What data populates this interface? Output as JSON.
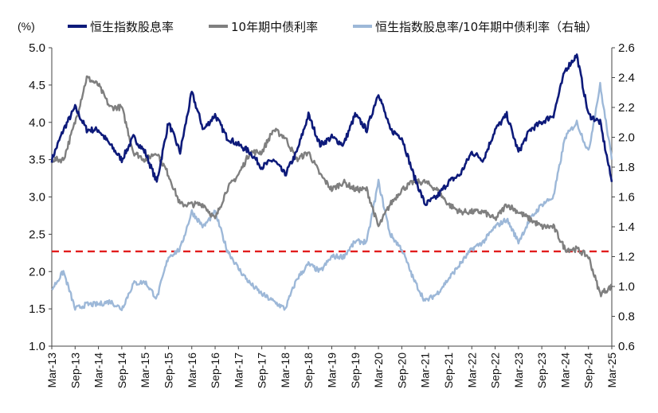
{
  "chart_data": {
    "type": "line",
    "unit_label": "(%)",
    "x_ticks": [
      "Mar-13",
      "Sep-13",
      "Mar-14",
      "Sep-14",
      "Mar-15",
      "Sep-15",
      "Mar-16",
      "Sep-16",
      "Mar-17",
      "Sep-17",
      "Mar-18",
      "Sep-18",
      "Mar-19",
      "Sep-19",
      "Mar-20",
      "Sep-20",
      "Mar-21",
      "Sep-21",
      "Mar-22",
      "Sep-22",
      "Mar-23",
      "Sep-23",
      "Mar-24",
      "Sep-24",
      "Mar-25"
    ],
    "y_left": {
      "min": 1.0,
      "max": 5.0,
      "ticks": [
        "1.0",
        "1.5",
        "2.0",
        "2.5",
        "3.0",
        "3.5",
        "4.0",
        "4.5",
        "5.0"
      ]
    },
    "y_right": {
      "min": 0.6,
      "max": 2.6,
      "ticks": [
        "0.6",
        "0.8",
        "1.0",
        "1.2",
        "1.4",
        "1.6",
        "1.8",
        "2.0",
        "2.2",
        "2.4",
        "2.6"
      ]
    },
    "reference_line": {
      "axis": "left",
      "value": 2.27,
      "color": "#e11d1d",
      "style": "dashed"
    },
    "series": [
      {
        "name": "恒生指数股息率",
        "axis": "left",
        "color": "#0d1a7a",
        "x": [
          "2013-03",
          "2013-06",
          "2013-09",
          "2013-12",
          "2014-03",
          "2014-06",
          "2014-09",
          "2014-12",
          "2015-03",
          "2015-06",
          "2015-09",
          "2015-12",
          "2016-03",
          "2016-06",
          "2016-09",
          "2016-12",
          "2017-03",
          "2017-06",
          "2017-09",
          "2017-12",
          "2018-03",
          "2018-06",
          "2018-09",
          "2018-12",
          "2019-03",
          "2019-06",
          "2019-09",
          "2019-12",
          "2020-03",
          "2020-06",
          "2020-09",
          "2020-12",
          "2021-03",
          "2021-06",
          "2021-09",
          "2021-12",
          "2022-03",
          "2022-06",
          "2022-09",
          "2022-12",
          "2023-03",
          "2023-06",
          "2023-09",
          "2023-12",
          "2024-03",
          "2024-06",
          "2024-09",
          "2024-12",
          "2025-03"
        ],
        "y": [
          3.5,
          3.9,
          4.2,
          3.9,
          3.9,
          3.7,
          3.5,
          3.8,
          3.6,
          3.2,
          4.0,
          3.6,
          4.4,
          3.9,
          4.1,
          3.8,
          3.7,
          3.6,
          3.4,
          3.5,
          3.3,
          3.6,
          4.1,
          3.7,
          3.8,
          3.7,
          4.1,
          3.9,
          4.4,
          3.9,
          3.8,
          3.3,
          2.9,
          3.0,
          3.2,
          3.3,
          3.6,
          3.5,
          3.9,
          4.1,
          3.6,
          3.9,
          4.0,
          4.1,
          4.7,
          4.9,
          4.1,
          4.0,
          3.2
        ]
      },
      {
        "name": "10年期中债利率",
        "axis": "left",
        "color": "#7f7f7f",
        "x": [
          "2013-03",
          "2013-06",
          "2013-09",
          "2013-12",
          "2014-03",
          "2014-06",
          "2014-09",
          "2014-12",
          "2015-03",
          "2015-06",
          "2015-09",
          "2015-12",
          "2016-03",
          "2016-06",
          "2016-09",
          "2016-12",
          "2017-03",
          "2017-06",
          "2017-09",
          "2017-12",
          "2018-03",
          "2018-06",
          "2018-09",
          "2018-12",
          "2019-03",
          "2019-06",
          "2019-09",
          "2019-12",
          "2020-03",
          "2020-06",
          "2020-09",
          "2020-12",
          "2021-03",
          "2021-06",
          "2021-09",
          "2021-12",
          "2022-03",
          "2022-06",
          "2022-09",
          "2022-12",
          "2023-03",
          "2023-06",
          "2023-09",
          "2023-12",
          "2024-03",
          "2024-06",
          "2024-09",
          "2024-12",
          "2025-03"
        ],
        "y": [
          3.5,
          3.5,
          4.0,
          4.6,
          4.5,
          4.2,
          4.2,
          3.6,
          3.5,
          3.6,
          3.3,
          2.9,
          2.9,
          2.9,
          2.7,
          3.1,
          3.3,
          3.6,
          3.6,
          3.9,
          3.8,
          3.5,
          3.6,
          3.3,
          3.1,
          3.2,
          3.1,
          3.1,
          2.6,
          2.9,
          3.1,
          3.2,
          3.2,
          3.1,
          2.9,
          2.8,
          2.8,
          2.8,
          2.7,
          2.9,
          2.8,
          2.7,
          2.6,
          2.6,
          2.3,
          2.3,
          2.2,
          1.7,
          1.8
        ]
      },
      {
        "name": "恒生指数股息率/10年期中债利率（右轴）",
        "axis": "right",
        "color": "#9db8d8",
        "x": [
          "2013-03",
          "2013-06",
          "2013-09",
          "2013-12",
          "2014-03",
          "2014-06",
          "2014-09",
          "2014-12",
          "2015-03",
          "2015-06",
          "2015-09",
          "2015-12",
          "2016-03",
          "2016-06",
          "2016-09",
          "2016-12",
          "2017-03",
          "2017-06",
          "2017-09",
          "2017-12",
          "2018-03",
          "2018-06",
          "2018-09",
          "2018-12",
          "2019-03",
          "2019-06",
          "2019-09",
          "2019-12",
          "2020-03",
          "2020-06",
          "2020-09",
          "2020-12",
          "2021-03",
          "2021-06",
          "2021-09",
          "2021-12",
          "2022-03",
          "2022-06",
          "2022-09",
          "2022-12",
          "2023-03",
          "2023-06",
          "2023-09",
          "2023-12",
          "2024-03",
          "2024-06",
          "2024-09",
          "2024-12",
          "2025-03"
        ],
        "y": [
          0.98,
          1.1,
          0.85,
          0.88,
          0.88,
          0.9,
          0.85,
          1.02,
          1.03,
          0.92,
          1.2,
          1.25,
          1.5,
          1.4,
          1.5,
          1.25,
          1.12,
          1.02,
          0.95,
          0.9,
          0.85,
          1.05,
          1.15,
          1.1,
          1.2,
          1.2,
          1.3,
          1.3,
          1.7,
          1.35,
          1.25,
          1.05,
          0.9,
          0.95,
          1.05,
          1.15,
          1.25,
          1.3,
          1.4,
          1.45,
          1.3,
          1.45,
          1.55,
          1.6,
          2.0,
          2.1,
          1.9,
          2.35,
          1.85
        ]
      }
    ]
  }
}
